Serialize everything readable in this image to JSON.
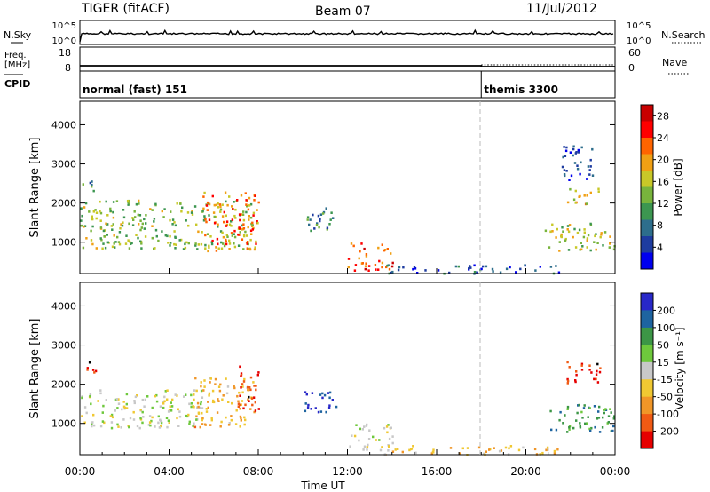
{
  "header": {
    "title": "TIGER (fitACF)",
    "beam": "Beam 07",
    "date": "11/Jul/2012"
  },
  "strip_labels": {
    "nsky": "N.Sky",
    "nsky_ticks": [
      "10^5",
      "10^0"
    ],
    "nsearch": "N.Search",
    "nsearch_ticks": [
      "10^5",
      "10^0"
    ],
    "freq": "Freq.",
    "freq_unit": "[MHz]",
    "freq_ticks": [
      "18",
      "8"
    ],
    "nave": "Nave",
    "nave_ticks": [
      "60",
      "0"
    ],
    "cpid": "CPID"
  },
  "cpid_segments": [
    {
      "start_hour": 0,
      "label": "normal (fast) 151"
    },
    {
      "start_hour": 18,
      "label": "themis 3300"
    }
  ],
  "chart_data": [
    {
      "type": "heatmap",
      "panel": "power",
      "ylabel": "Slant Range [km]",
      "xlabel": "",
      "x_ticks": [
        "00:00",
        "04:00",
        "08:00",
        "12:00",
        "16:00",
        "20:00",
        "00:00"
      ],
      "x_range_hours": [
        0,
        24
      ],
      "y_ticks": [
        1000,
        2000,
        3000,
        4000
      ],
      "ylim": [
        200,
        4600
      ],
      "colorbar": {
        "label": "Power [dB]",
        "ticks": [
          4,
          8,
          12,
          16,
          20,
          24,
          28
        ],
        "range": [
          0,
          30
        ],
        "colors": [
          "#0000ee",
          "#1e3ca0",
          "#2d6e8c",
          "#3c9650",
          "#78b43c",
          "#c8c828",
          "#f0a014",
          "#ff6400",
          "#ff0000",
          "#c80000"
        ]
      },
      "regions": [
        {
          "h0": 0.0,
          "h1": 7.8,
          "r0": 850,
          "r1": 2100,
          "value": 14
        },
        {
          "h0": 0.0,
          "h1": 0.8,
          "r0": 2300,
          "r1": 2600,
          "value": 10
        },
        {
          "h0": 5.5,
          "h1": 8.0,
          "r0": 800,
          "r1": 2300,
          "value": 22
        },
        {
          "h0": 10.0,
          "h1": 11.5,
          "r0": 1300,
          "r1": 1900,
          "value": 9
        },
        {
          "h0": 12.0,
          "h1": 14.0,
          "r0": 300,
          "r1": 1000,
          "value": 24
        },
        {
          "h0": 13.5,
          "h1": 21.5,
          "r0": 220,
          "r1": 450,
          "value": 5
        },
        {
          "h0": 20.8,
          "h1": 24.0,
          "r0": 800,
          "r1": 1500,
          "value": 15
        },
        {
          "h0": 21.8,
          "h1": 23.3,
          "r0": 2000,
          "r1": 2400,
          "value": 17
        },
        {
          "h0": 21.5,
          "h1": 23.0,
          "r0": 2600,
          "r1": 3500,
          "value": 4
        }
      ]
    },
    {
      "type": "heatmap",
      "panel": "velocity",
      "ylabel": "Slant Range [km]",
      "xlabel": "Time UT",
      "x_ticks": [
        "00:00",
        "04:00",
        "08:00",
        "12:00",
        "16:00",
        "20:00",
        "00:00"
      ],
      "x_range_hours": [
        0,
        24
      ],
      "y_ticks": [
        1000,
        2000,
        3000,
        4000
      ],
      "ylim": [
        200,
        4600
      ],
      "colorbar": {
        "label": "Velocity [m s⁻¹]",
        "ticks": [
          200,
          100,
          50,
          15,
          -15,
          -50,
          -100,
          -200
        ],
        "range": [
          -250,
          250
        ],
        "colors": [
          "#2828c8",
          "#1e64a0",
          "#3c9646",
          "#6ec83c",
          "#c8c8c8",
          "#f0c832",
          "#f09628",
          "#f05a14",
          "#e60000"
        ]
      },
      "regions": [
        {
          "h0": 0.0,
          "h1": 5.5,
          "r0": 900,
          "r1": 1900,
          "value": 0
        },
        {
          "h0": 5.0,
          "h1": 7.8,
          "r0": 900,
          "r1": 2200,
          "value": -80
        },
        {
          "h0": 7.0,
          "h1": 8.0,
          "r0": 1300,
          "r1": 2500,
          "value": -200
        },
        {
          "h0": 0.0,
          "h1": 0.8,
          "r0": 2300,
          "r1": 2600,
          "value": -200
        },
        {
          "h0": 10.0,
          "h1": 11.5,
          "r0": 1300,
          "r1": 1900,
          "value": 200
        },
        {
          "h0": 12.0,
          "h1": 14.0,
          "r0": 300,
          "r1": 1000,
          "value": 0
        },
        {
          "h0": 13.5,
          "h1": 21.5,
          "r0": 220,
          "r1": 450,
          "value": -60
        },
        {
          "h0": 20.8,
          "h1": 24.0,
          "r0": 800,
          "r1": 1500,
          "value": 120
        },
        {
          "h0": 21.8,
          "h1": 23.3,
          "r0": 2000,
          "r1": 2600,
          "value": -200
        }
      ]
    }
  ]
}
